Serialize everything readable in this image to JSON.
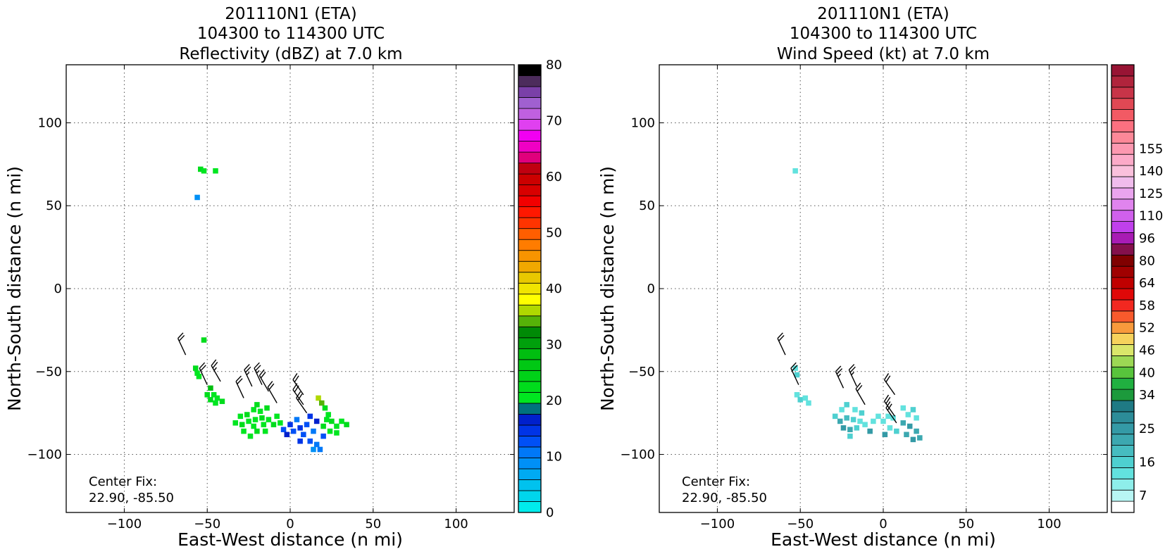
{
  "chart_data": [
    {
      "type": "heatmap",
      "title_lines": [
        "201110N1 (ETA)",
        "104300 to 114300 UTC",
        "Reflectivity (dBZ) at 7.0 km"
      ],
      "xlabel": "East-West distance (n mi)",
      "ylabel": "North-South distance (n mi)",
      "xlim": [
        -135,
        135
      ],
      "ylim": [
        -135,
        135
      ],
      "xticks": [
        -100,
        -50,
        0,
        50,
        100
      ],
      "yticks": [
        -100,
        -50,
        0,
        50,
        100
      ],
      "xtick_labels": [
        "−100",
        "−50",
        "0",
        "50",
        "100"
      ],
      "ytick_labels": [
        "−100",
        "−50",
        "0",
        "50",
        "100"
      ],
      "grid": true,
      "annotation_lines": [
        "Center Fix:",
        "22.90, -85.50"
      ],
      "colorbar": {
        "min": 0,
        "max": 80,
        "tick_values": [
          0,
          10,
          20,
          30,
          40,
          50,
          60,
          70,
          80
        ],
        "tick_labels": [
          "0",
          "10",
          "20",
          "30",
          "40",
          "50",
          "60",
          "70",
          "80"
        ],
        "colors": [
          "#00ecec",
          "#00d6ec",
          "#00c2ee",
          "#00aaf2",
          "#0090f6",
          "#0078f8",
          "#0050f6",
          "#0034e6",
          "#0020cc",
          "#00727e",
          "#00e620",
          "#00dc1c",
          "#00d218",
          "#00c814",
          "#00be10",
          "#00a00c",
          "#008a06",
          "#56b208",
          "#b0d800",
          "#ffff00",
          "#f0e400",
          "#e8c800",
          "#f0a800",
          "#f89400",
          "#ff7c00",
          "#ff5e00",
          "#ff3400",
          "#ff1800",
          "#f20000",
          "#d80000",
          "#cc0000",
          "#c00010",
          "#e0007c",
          "#f000c4",
          "#f200f2",
          "#e040f0",
          "#c060e0",
          "#a060d0",
          "#7a40a8",
          "#4c2c5c",
          "#000000"
        ]
      },
      "cells": [
        {
          "x": -54,
          "y": 72,
          "v": 22
        },
        {
          "x": -52,
          "y": 71,
          "v": 20
        },
        {
          "x": -45,
          "y": 71,
          "v": 21
        },
        {
          "x": -56,
          "y": 55,
          "v": 8
        },
        {
          "x": -52,
          "y": -31,
          "v": 23
        },
        {
          "x": -57,
          "y": -48,
          "v": 22
        },
        {
          "x": -56,
          "y": -51,
          "v": 20
        },
        {
          "x": -55,
          "y": -53,
          "v": 21
        },
        {
          "x": -48,
          "y": -60,
          "v": 28
        },
        {
          "x": -50,
          "y": -64,
          "v": 22
        },
        {
          "x": -46,
          "y": -64,
          "v": 20
        },
        {
          "x": -48,
          "y": -67,
          "v": 22
        },
        {
          "x": -44,
          "y": -66,
          "v": 21
        },
        {
          "x": -41,
          "y": -68,
          "v": 23
        },
        {
          "x": -45,
          "y": -69,
          "v": 20
        },
        {
          "x": -30,
          "y": -77,
          "v": 20
        },
        {
          "x": -26,
          "y": -76,
          "v": 22
        },
        {
          "x": -22,
          "y": -73,
          "v": 21
        },
        {
          "x": -20,
          "y": -70,
          "v": 23
        },
        {
          "x": -18,
          "y": -74,
          "v": 20
        },
        {
          "x": -14,
          "y": -72,
          "v": 22
        },
        {
          "x": -25,
          "y": -80,
          "v": 21
        },
        {
          "x": -21,
          "y": -79,
          "v": 20
        },
        {
          "x": -17,
          "y": -78,
          "v": 22
        },
        {
          "x": -13,
          "y": -79,
          "v": 21
        },
        {
          "x": -33,
          "y": -81,
          "v": 20
        },
        {
          "x": -29,
          "y": -82,
          "v": 22
        },
        {
          "x": -22,
          "y": -83,
          "v": 20
        },
        {
          "x": -16,
          "y": -82,
          "v": 21
        },
        {
          "x": -10,
          "y": -82,
          "v": 23
        },
        {
          "x": -28,
          "y": -86,
          "v": 21
        },
        {
          "x": -20,
          "y": -86,
          "v": 22
        },
        {
          "x": -15,
          "y": -86,
          "v": 20
        },
        {
          "x": -24,
          "y": -89,
          "v": 21
        },
        {
          "x": -8,
          "y": -77,
          "v": 20
        },
        {
          "x": -6,
          "y": -81,
          "v": 20
        },
        {
          "x": -4,
          "y": -85,
          "v": 12
        },
        {
          "x": -2,
          "y": -88,
          "v": 16
        },
        {
          "x": 0,
          "y": -82,
          "v": 14
        },
        {
          "x": 2,
          "y": -86,
          "v": 13
        },
        {
          "x": 4,
          "y": -79,
          "v": 11
        },
        {
          "x": 6,
          "y": -84,
          "v": 14
        },
        {
          "x": 8,
          "y": -88,
          "v": 12
        },
        {
          "x": 10,
          "y": -82,
          "v": 13
        },
        {
          "x": 12,
          "y": -77,
          "v": 15
        },
        {
          "x": 14,
          "y": -86,
          "v": 11
        },
        {
          "x": 16,
          "y": -80,
          "v": 16
        },
        {
          "x": 6,
          "y": -92,
          "v": 14
        },
        {
          "x": 12,
          "y": -92,
          "v": 13
        },
        {
          "x": 16,
          "y": -94,
          "v": 11
        },
        {
          "x": 20,
          "y": -89,
          "v": 12
        },
        {
          "x": 14,
          "y": -97,
          "v": 9
        },
        {
          "x": 18,
          "y": -97,
          "v": 10
        },
        {
          "x": 17,
          "y": -66,
          "v": 37
        },
        {
          "x": 19,
          "y": -69,
          "v": 35
        },
        {
          "x": 21,
          "y": -72,
          "v": 22
        },
        {
          "x": 23,
          "y": -76,
          "v": 21
        },
        {
          "x": 25,
          "y": -80,
          "v": 22
        },
        {
          "x": 28,
          "y": -83,
          "v": 20
        },
        {
          "x": 31,
          "y": -80,
          "v": 21
        },
        {
          "x": 34,
          "y": -82,
          "v": 22
        },
        {
          "x": 24,
          "y": -86,
          "v": 20
        },
        {
          "x": 28,
          "y": -87,
          "v": 21
        },
        {
          "x": 20,
          "y": -83,
          "v": 22
        },
        {
          "x": 22,
          "y": -79,
          "v": 20
        }
      ],
      "barbs": [
        {
          "x": -63,
          "y": -40,
          "dir": 335,
          "speed": 20
        },
        {
          "x": -50,
          "y": -58,
          "dir": 335,
          "speed": 20
        },
        {
          "x": -42,
          "y": -56,
          "dir": 330,
          "speed": 25
        },
        {
          "x": -28,
          "y": -66,
          "dir": 335,
          "speed": 20
        },
        {
          "x": -23,
          "y": -59,
          "dir": 335,
          "speed": 25
        },
        {
          "x": -17,
          "y": -58,
          "dir": 335,
          "speed": 25
        },
        {
          "x": -13,
          "y": -62,
          "dir": 330,
          "speed": 20
        },
        {
          "x": -8,
          "y": -69,
          "dir": 330,
          "speed": 20
        },
        {
          "x": 8,
          "y": -64,
          "dir": 325,
          "speed": 20
        },
        {
          "x": 8,
          "y": -70,
          "dir": 325,
          "speed": 20
        },
        {
          "x": 10,
          "y": -75,
          "dir": 325,
          "speed": 20
        }
      ]
    },
    {
      "type": "heatmap",
      "title_lines": [
        "201110N1 (ETA)",
        "104300 to 114300 UTC",
        "Wind Speed (kt) at 7.0 km"
      ],
      "xlabel": "East-West distance (n mi)",
      "ylabel": "North-South distance (n mi)",
      "xlim": [
        -135,
        135
      ],
      "ylim": [
        -135,
        135
      ],
      "xticks": [
        -100,
        -50,
        0,
        50,
        100
      ],
      "yticks": [
        -100,
        -50,
        0,
        50,
        100
      ],
      "xtick_labels": [
        "−100",
        "−50",
        "0",
        "50",
        "100"
      ],
      "ytick_labels": [
        "−100",
        "−50",
        "0",
        "50",
        "100"
      ],
      "grid": true,
      "annotation_lines": [
        "Center Fix:",
        "22.90, -85.50"
      ],
      "colorbar": {
        "min": 4,
        "max": 160,
        "tick_values": [
          7,
          16,
          25,
          34,
          40,
          46,
          52,
          58,
          64,
          80,
          96,
          110,
          125,
          140,
          155
        ],
        "tick_labels": [
          "7",
          "16",
          "25",
          "34",
          "40",
          "46",
          "52",
          "58",
          "64",
          "80",
          "96",
          "110",
          "125",
          "140",
          "155"
        ],
        "colors": [
          "#ffffff",
          "#b8f6f4",
          "#8eeeea",
          "#62e2de",
          "#4ed0d0",
          "#46bcc0",
          "#3ca8b0",
          "#349aa6",
          "#2c8c98",
          "#1f7a84",
          "#1c9a3c",
          "#20b040",
          "#58c43c",
          "#9cd854",
          "#dae66a",
          "#f6d25c",
          "#f89a3c",
          "#f85a2c",
          "#f22820",
          "#e00808",
          "#c00000",
          "#a00000",
          "#800000",
          "#84104c",
          "#a81cb4",
          "#c040ec",
          "#d060ec",
          "#e084ee",
          "#eaa4ee",
          "#f0bcec",
          "#fac0dc",
          "#fcaac8",
          "#fc98b0",
          "#fc8898",
          "#fc7080",
          "#f25a64",
          "#e04854",
          "#c83448",
          "#b0243c",
          "#981434"
        ],
        "bins": [
          4,
          7,
          10,
          13,
          16,
          19,
          22,
          25,
          28,
          31,
          34,
          37,
          40,
          43,
          46,
          49,
          52,
          55,
          58,
          61,
          64,
          72,
          80,
          88,
          96,
          103,
          110,
          117,
          125,
          132,
          140,
          147,
          155,
          160
        ]
      },
      "cells": [
        {
          "x": -53,
          "y": 71,
          "v": 14
        },
        {
          "x": -53,
          "y": -48,
          "v": 15
        },
        {
          "x": -52,
          "y": -52,
          "v": 16
        },
        {
          "x": -52,
          "y": -64,
          "v": 14
        },
        {
          "x": -50,
          "y": -67,
          "v": 17
        },
        {
          "x": -47,
          "y": -66,
          "v": 15
        },
        {
          "x": -45,
          "y": -69,
          "v": 13
        },
        {
          "x": -29,
          "y": -77,
          "v": 17
        },
        {
          "x": -25,
          "y": -73,
          "v": 15
        },
        {
          "x": -22,
          "y": -70,
          "v": 16
        },
        {
          "x": -17,
          "y": -73,
          "v": 14
        },
        {
          "x": -13,
          "y": -75,
          "v": 17
        },
        {
          "x": -26,
          "y": -80,
          "v": 23
        },
        {
          "x": -22,
          "y": -78,
          "v": 21
        },
        {
          "x": -18,
          "y": -79,
          "v": 16
        },
        {
          "x": -14,
          "y": -80,
          "v": 15
        },
        {
          "x": -24,
          "y": -84,
          "v": 25
        },
        {
          "x": -20,
          "y": -85,
          "v": 22
        },
        {
          "x": -16,
          "y": -84,
          "v": 17
        },
        {
          "x": -11,
          "y": -82,
          "v": 15
        },
        {
          "x": -20,
          "y": -89,
          "v": 16
        },
        {
          "x": -8,
          "y": -86,
          "v": 25
        },
        {
          "x": -6,
          "y": -80,
          "v": 15
        },
        {
          "x": -3,
          "y": -77,
          "v": 14
        },
        {
          "x": 0,
          "y": -80,
          "v": 13
        },
        {
          "x": 3,
          "y": -77,
          "v": 15
        },
        {
          "x": 6,
          "y": -78,
          "v": 14
        },
        {
          "x": 4,
          "y": -84,
          "v": 13
        },
        {
          "x": 1,
          "y": -88,
          "v": 25
        },
        {
          "x": 8,
          "y": -86,
          "v": 16
        },
        {
          "x": 12,
          "y": -72,
          "v": 15
        },
        {
          "x": 15,
          "y": -76,
          "v": 14
        },
        {
          "x": 18,
          "y": -73,
          "v": 16
        },
        {
          "x": 20,
          "y": -78,
          "v": 15
        },
        {
          "x": 12,
          "y": -81,
          "v": 22
        },
        {
          "x": 16,
          "y": -83,
          "v": 25
        },
        {
          "x": 20,
          "y": -86,
          "v": 22
        },
        {
          "x": 14,
          "y": -88,
          "v": 24
        },
        {
          "x": 18,
          "y": -91,
          "v": 26
        },
        {
          "x": 22,
          "y": -90,
          "v": 23
        }
      ],
      "barbs": [
        {
          "x": -59,
          "y": -40,
          "dir": 335,
          "speed": 20
        },
        {
          "x": -51,
          "y": -58,
          "dir": 335,
          "speed": 20
        },
        {
          "x": -24,
          "y": -60,
          "dir": 335,
          "speed": 25
        },
        {
          "x": -16,
          "y": -59,
          "dir": 335,
          "speed": 25
        },
        {
          "x": -11,
          "y": -70,
          "dir": 330,
          "speed": 20
        },
        {
          "x": 7,
          "y": -64,
          "dir": 325,
          "speed": 20
        },
        {
          "x": 7,
          "y": -77,
          "dir": 325,
          "speed": 20
        },
        {
          "x": 8,
          "y": -81,
          "dir": 325,
          "speed": 20
        }
      ]
    }
  ]
}
